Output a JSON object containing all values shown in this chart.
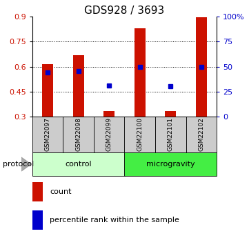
{
  "title": "GDS928 / 3693",
  "samples": [
    "GSM22097",
    "GSM22098",
    "GSM22099",
    "GSM22100",
    "GSM22101",
    "GSM22102"
  ],
  "bar_bottom": 0.3,
  "bar_tops": [
    0.615,
    0.67,
    0.335,
    0.83,
    0.335,
    0.895
  ],
  "blue_y": [
    0.565,
    0.575,
    0.485,
    0.597,
    0.483,
    0.597
  ],
  "ylim_left": [
    0.3,
    0.9
  ],
  "ylim_right": [
    0,
    100
  ],
  "yticks_left": [
    0.3,
    0.45,
    0.6,
    0.75,
    0.9
  ],
  "ytick_labels_left": [
    "0.3",
    "0.45",
    "0.6",
    "0.75",
    "0.9"
  ],
  "yticks_right": [
    0,
    25,
    50,
    75,
    100
  ],
  "ytick_labels_right": [
    "0",
    "25",
    "50",
    "75",
    "100%"
  ],
  "bar_color": "#cc1100",
  "blue_color": "#0000cc",
  "protocol_groups": [
    {
      "label": "control",
      "start": 0,
      "end": 3,
      "color": "#ccffcc"
    },
    {
      "label": "microgravity",
      "start": 3,
      "end": 6,
      "color": "#44ee44"
    }
  ],
  "protocol_label": "protocol",
  "legend_items": [
    "count",
    "percentile rank within the sample"
  ],
  "bar_width": 0.35,
  "fig_bg": "#ffffff",
  "axes_bg": "#ffffff",
  "sample_area_bg": "#cccccc",
  "title_fontsize": 11,
  "tick_fontsize": 8,
  "label_fontsize": 8,
  "grid_yticks": [
    0.45,
    0.6,
    0.75
  ]
}
